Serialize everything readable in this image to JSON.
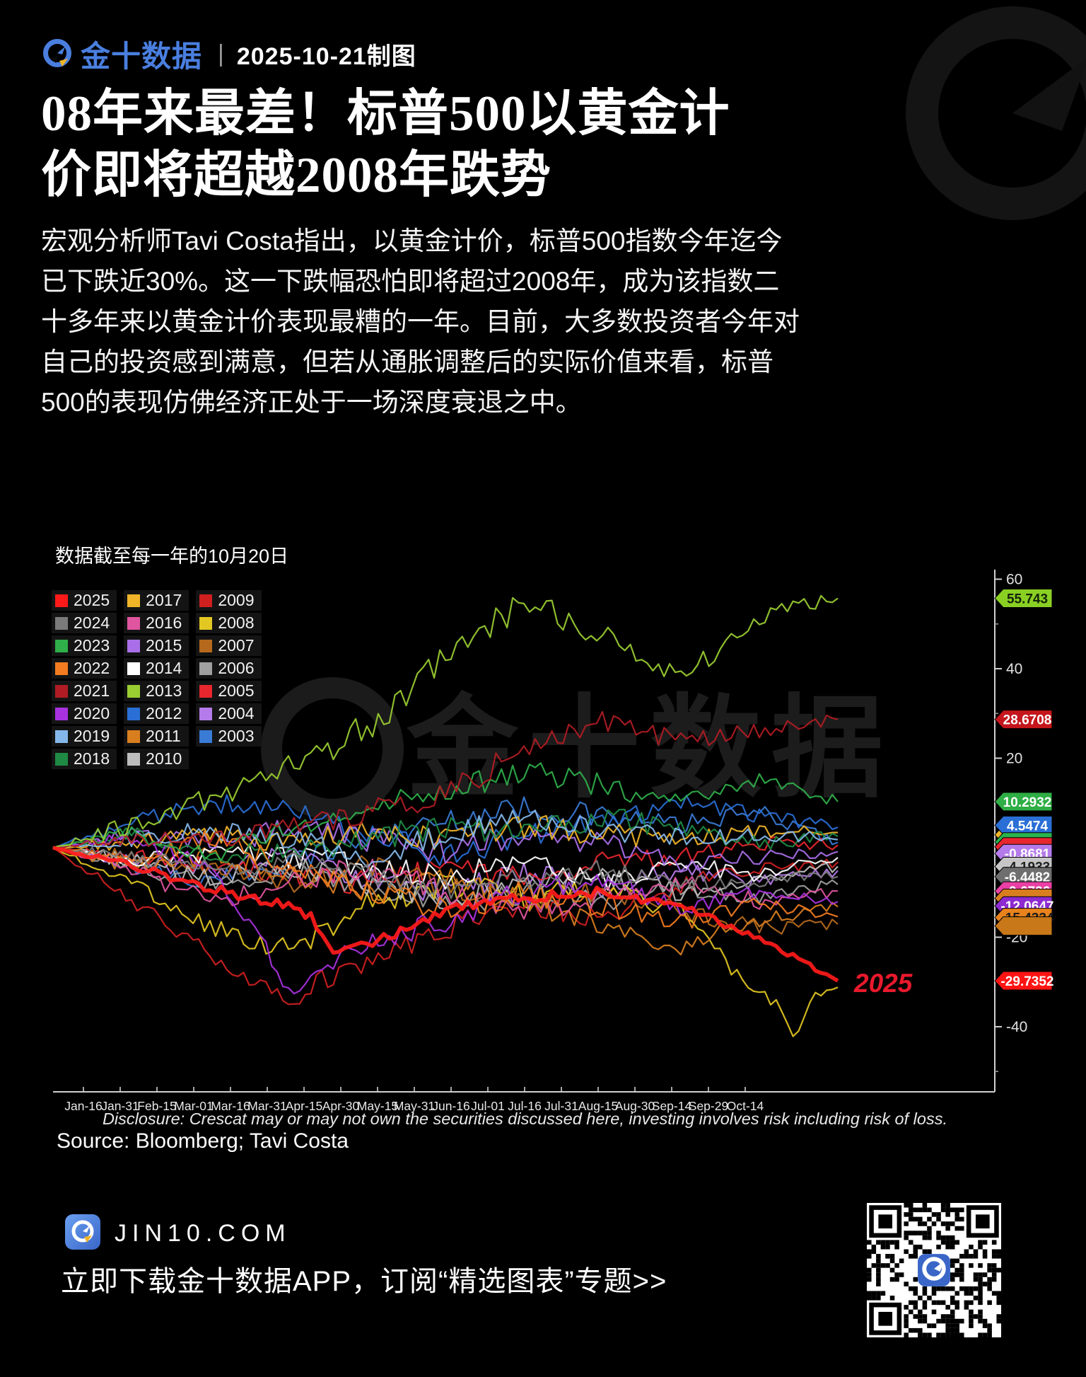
{
  "header": {
    "brand": "金十数据",
    "divider": "|",
    "date_label": "2025-10-21制图",
    "brand_color": "#4a7fe0"
  },
  "headline": {
    "line1": "08年来最差！标普500以黄金计",
    "line2": "价即将超越2008年跌势"
  },
  "body": {
    "line1": "宏观分析师Tavi Costa指出，以黄金计价，标普500指数今年迄今",
    "line2": "已下跌近30%。这一下跌幅恐怕即将超过2008年，成为该指数二",
    "line3": "十多年来以黄金计价表现最糟的一年。目前，大多数投资者今年对",
    "line4": "自己的投资感到满意，但若从通胀调整后的实际价值来看，标普",
    "line5": "500的表现仿佛经济正处于一场深度衰退之中。"
  },
  "chart": {
    "note": "数据截至每一年的10月20日",
    "annotation_2025": "2025",
    "annotation_color": "#e8192c",
    "disclosure": "Disclosure: Crescat may or may not own the securities discussed here, investing involves risk including risk of loss.",
    "source": "Source: Bloomberg; Tavi Costa",
    "legend_columns": [
      [
        "2025",
        "2024",
        "2023",
        "2022",
        "2021",
        "2020",
        "2019",
        "2018"
      ],
      [
        "2017",
        "2016",
        "2015",
        "2014",
        "2013",
        "2012",
        "2011",
        "2010"
      ],
      [
        "2009",
        "2008",
        "2007",
        "2006",
        "2005",
        "2004",
        "2003"
      ]
    ],
    "chart_data": {
      "type": "line",
      "x_tick_labels": [
        "Jan-16",
        "Jan-31",
        "Feb-15",
        "Mar-01",
        "Mar-16",
        "Mar-31",
        "Apr-15",
        "Apr-30",
        "May-15",
        "May-31",
        "Jun-16",
        "Jul-01",
        "Jul-16",
        "Jul-31",
        "Aug-15",
        "Aug-30",
        "Sep-14",
        "Sep-29",
        "Oct-14"
      ],
      "y_ticks_major": [
        60,
        40,
        20,
        0,
        -20,
        -40
      ],
      "y_tick_labels": [
        "60",
        "40",
        "20",
        "-20",
        "-40"
      ],
      "y_ticks_minor": [
        50,
        30,
        10,
        -10,
        -30,
        -50
      ],
      "ylim": [
        -54,
        62
      ],
      "x_range_note": "Jan-1 through Oct-20 of each year, S&P 500 priced in gold, % change YTD",
      "series": [
        {
          "name": "2003",
          "color": "#3a7bd5",
          "values": [
            0,
            -4,
            -8,
            -3,
            2,
            6,
            9,
            7,
            5,
            8,
            1.2
          ]
        },
        {
          "name": "2004",
          "color": "#b57bea",
          "values": [
            0,
            -3,
            -5,
            -2,
            -7,
            -10,
            -6,
            -9,
            -5,
            -8,
            -5.1
          ]
        },
        {
          "name": "2005",
          "color": "#e8262e",
          "values": [
            0,
            -2,
            -4,
            -6,
            -8,
            -5,
            -7,
            -3,
            -2,
            1,
            0.6
          ]
        },
        {
          "name": "2006",
          "color": "#a0a0a0",
          "values": [
            0,
            -4,
            -8,
            -5,
            -9,
            -13,
            -10,
            -12,
            -9,
            -11,
            -8.2
          ]
        },
        {
          "name": "2007",
          "color": "#b5691c",
          "values": [
            0,
            -2,
            -5,
            -8,
            -4,
            -9,
            -12,
            -9,
            -14,
            -18,
            -17.1
          ]
        },
        {
          "name": "2008",
          "color": "#e3c722",
          "values": [
            0,
            -8,
            -18,
            -23,
            -13,
            -8,
            -11,
            -9,
            -14,
            -34,
            -31.2
          ],
          "dip": {
            "at": 9.45,
            "depth": -43
          }
        },
        {
          "name": "2009",
          "color": "#cf1f1f",
          "values": [
            0,
            -12,
            -24,
            -33,
            -26,
            -18,
            -13,
            -16,
            -8,
            -5,
            -3.2
          ],
          "dip": {
            "at": 3.05,
            "depth": -35
          }
        },
        {
          "name": "2010",
          "color": "#bdbdbd",
          "values": [
            0,
            -3,
            -7,
            -4,
            -8,
            -12,
            -9,
            -6,
            -10,
            -7,
            -4.1933
          ]
        },
        {
          "name": "2011",
          "color": "#d97e1f",
          "values": [
            0,
            -4,
            -2,
            -6,
            -10,
            -7,
            -12,
            -18,
            -22,
            -16,
            -13.2
          ]
        },
        {
          "name": "2012",
          "color": "#2a6fd6",
          "values": [
            0,
            6,
            10,
            8,
            4,
            -2,
            3,
            6,
            10,
            7,
            4.5474
          ]
        },
        {
          "name": "2014",
          "color": "#ffffff",
          "values": [
            0,
            -3,
            -1,
            -2,
            -4,
            -7,
            -3,
            -8,
            -4,
            -6,
            -2.2
          ]
        },
        {
          "name": "2015",
          "color": "#a96fe8",
          "values": [
            0,
            3,
            1,
            4,
            2,
            -1,
            3,
            1,
            -4,
            -2,
            -0.8681
          ]
        },
        {
          "name": "2016",
          "color": "#e0559f",
          "values": [
            0,
            -5,
            -12,
            -8,
            -4,
            -10,
            -14,
            -11,
            -8,
            -12,
            -9.6736
          ]
        },
        {
          "name": "2017",
          "color": "#f0b429",
          "values": [
            0,
            1,
            3,
            1,
            4,
            2,
            5,
            3,
            2,
            4,
            3.4
          ]
        },
        {
          "name": "2018",
          "color": "#1f8a44",
          "values": [
            0,
            3,
            -2,
            -1,
            2,
            5,
            3,
            7,
            4,
            1,
            2.5485
          ]
        },
        {
          "name": "2019",
          "color": "#85b8ea",
          "values": [
            0,
            2,
            4,
            2,
            -2,
            3,
            6,
            4,
            2,
            3,
            1.8
          ]
        },
        {
          "name": "2020",
          "color": "#a832e0",
          "values": [
            0,
            2,
            -4,
            -30,
            -22,
            -16,
            -10,
            -7,
            -13,
            -10,
            -12.0647
          ],
          "dip": {
            "at": 3.1,
            "depth": -33
          }
        },
        {
          "name": "2022",
          "color": "#f47c20",
          "values": [
            0,
            -3,
            2,
            -4,
            -9,
            -14,
            -10,
            -13,
            -17,
            -12,
            -15.4334
          ]
        },
        {
          "name": "2023",
          "color": "#2fae4a",
          "values": [
            0,
            3,
            -2,
            4,
            8,
            13,
            17,
            14,
            10,
            15,
            10.2932
          ]
        },
        {
          "name": "2024",
          "color": "#7a7a7a",
          "values": [
            0,
            -2,
            -5,
            -3,
            -6,
            -9,
            -7,
            -5,
            -8,
            -7,
            -6.4482
          ]
        },
        {
          "name": "2021",
          "color": "#b01c24",
          "values": [
            0,
            2,
            1,
            5,
            8,
            12,
            22,
            28,
            24,
            26,
            28.6708
          ]
        },
        {
          "name": "2013",
          "color": "#9acd32",
          "values": [
            0,
            5,
            11,
            18,
            27,
            42,
            55,
            48,
            38,
            52,
            55.743
          ],
          "amp": 2.8
        },
        {
          "name": "2025",
          "color": "#ff1a1a",
          "values": [
            0,
            -4,
            -9,
            -13,
            -22,
            -14,
            -11,
            -10,
            -13,
            -20,
            -29.7352
          ],
          "width": 5.5,
          "amp": 1.0,
          "dip": {
            "at": 3.6,
            "depth": -24
          }
        }
      ],
      "end_labels": [
        {
          "text": "55.743",
          "y_value": 55.743,
          "bg": "#8ad023",
          "fg": "#14230a"
        },
        {
          "text": "28.6708",
          "y_value": 28.6708,
          "bg": "#c4161c",
          "fg": "#ffffff"
        },
        {
          "text": "10.2932",
          "y_value": 10.2932,
          "bg": "#2eae44",
          "fg": "#ffffff"
        },
        {
          "text": "",
          "y_value": 2.9,
          "bg": "#f0b429",
          "fg": "#222222",
          "hidden": true
        },
        {
          "text": "4.5474",
          "y_value": 5.0,
          "bg": "#2a6fd6",
          "fg": "#ffffff"
        },
        {
          "text": "2.5485",
          "y_value": 1.3,
          "bg": "#28b44a",
          "fg": "#ffffff"
        },
        {
          "text": "",
          "y_value": 0.2,
          "bg": "#e8262e",
          "fg": "#ffffff",
          "hidden": true
        },
        {
          "text": "-0.8681",
          "y_value": -1.3,
          "bg": "#b57bea",
          "fg": "#ffffff"
        },
        {
          "text": "-4.1933",
          "y_value": -4.1933,
          "bg": "#c6c6c6",
          "fg": "#222222"
        },
        {
          "text": "-6.4482",
          "y_value": -6.4482,
          "bg": "#6e6e6e",
          "fg": "#ffffff"
        },
        {
          "text": "-9.6736",
          "y_value": -9.6736,
          "bg": "#ea3fa4",
          "fg": "#ffffff"
        },
        {
          "text": "",
          "y_value": -11.3,
          "bg": "#d97e1f",
          "fg": "#222222",
          "hidden": true
        },
        {
          "text": "-12.0647",
          "y_value": -13.0,
          "bg": "#8e2bd0",
          "fg": "#ffffff"
        },
        {
          "text": "-15.4334",
          "y_value": -15.6,
          "bg": "#e8821c",
          "fg": "#1c1c1c"
        },
        {
          "text": "",
          "y_value": -17.5,
          "bg": "#c87818",
          "fg": "#222222",
          "hidden": true
        },
        {
          "text": "-29.7352",
          "y_value": -29.7352,
          "bg": "#ff1414",
          "fg": "#ffffff"
        }
      ]
    }
  },
  "footer": {
    "site": "JIN10.COM",
    "cta": "立即下载金十数据APP，订阅“精选图表”专题>>"
  },
  "watermarks": {
    "center_text": "金十数据"
  }
}
